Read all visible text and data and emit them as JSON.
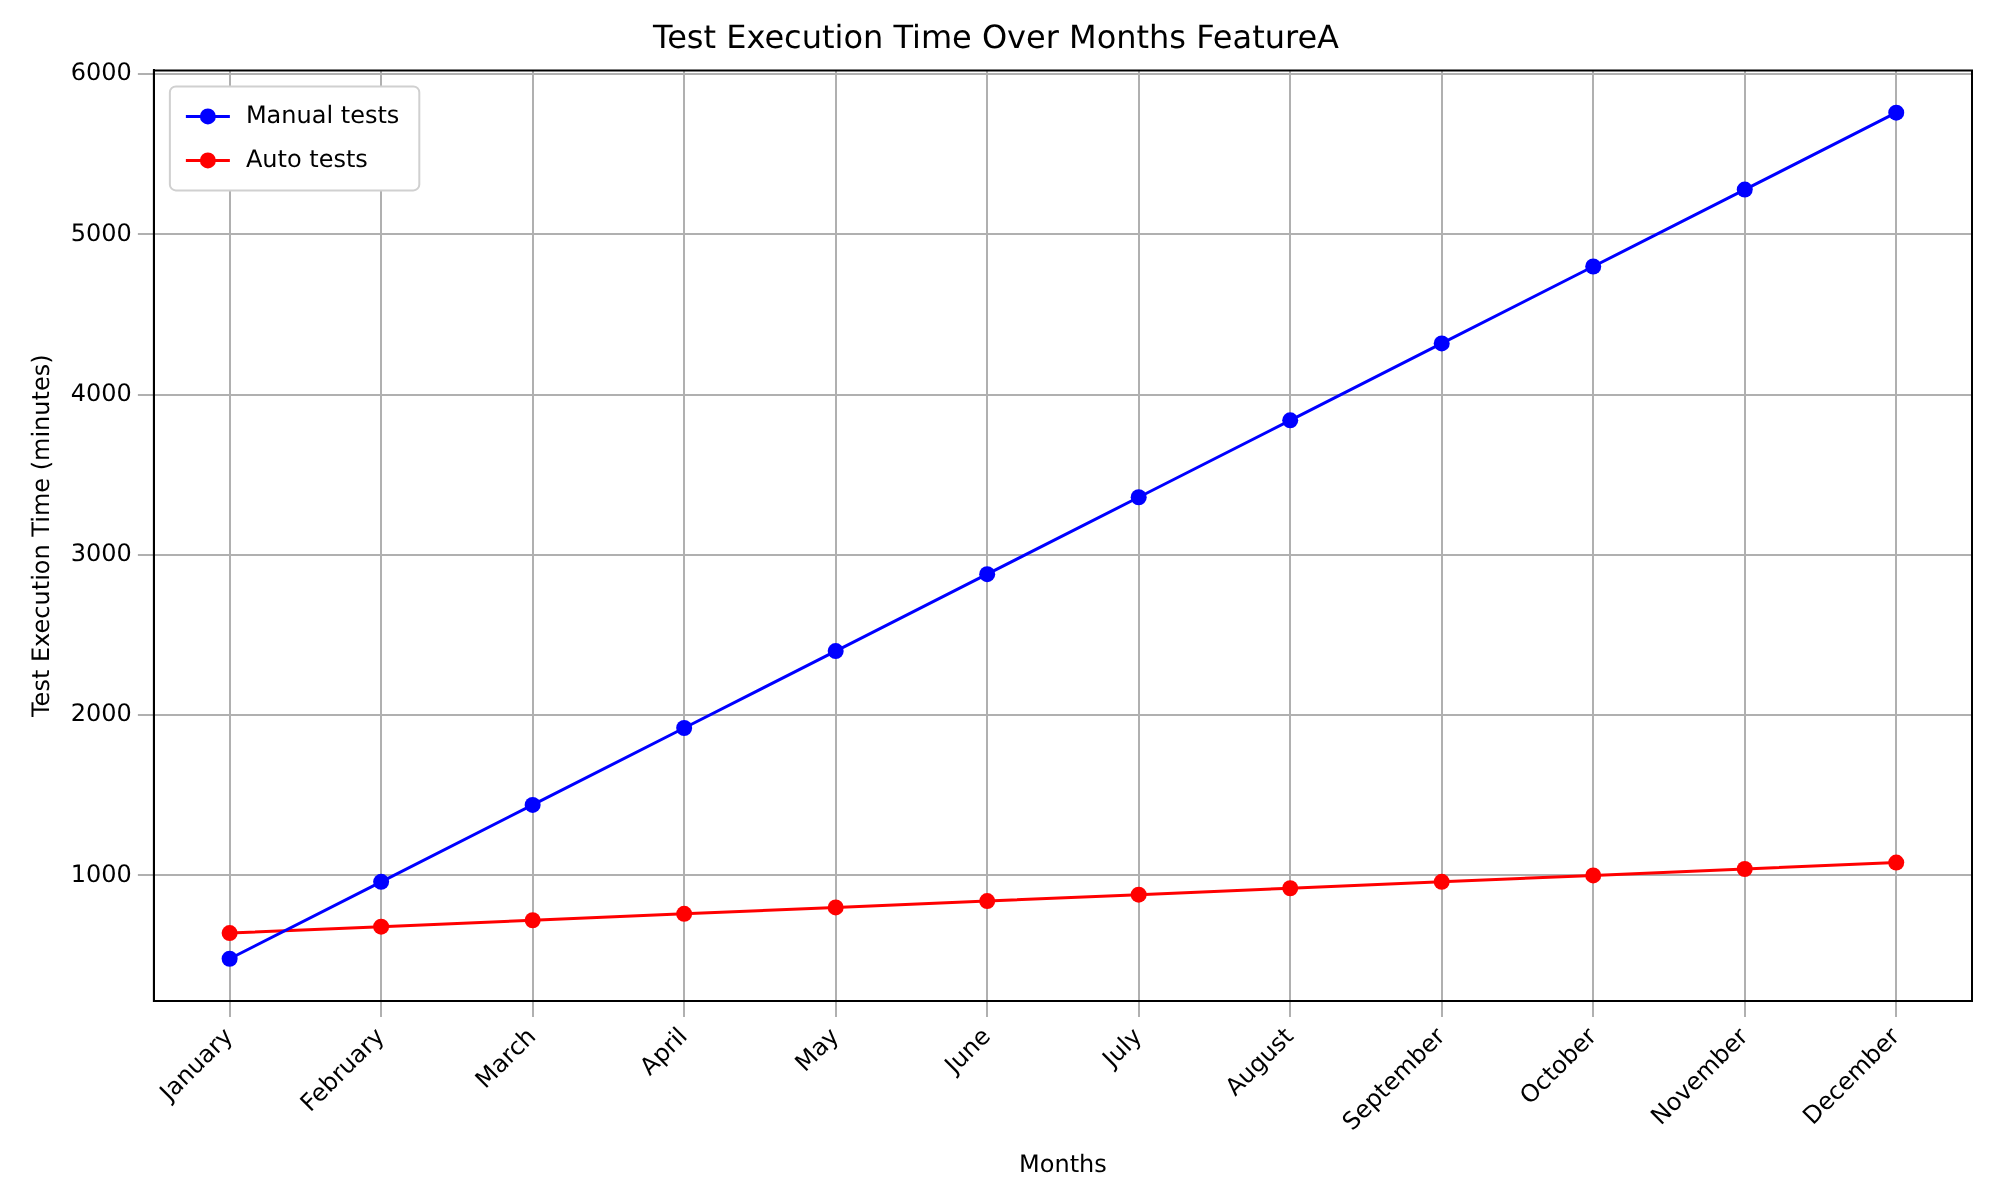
{
  "chart_data": {
    "type": "line",
    "title": "Test Execution Time Over Months FeatureA",
    "xlabel": "Months",
    "ylabel": "Test Execution Time (minutes)",
    "categories": [
      "January",
      "February",
      "March",
      "April",
      "May",
      "June",
      "July",
      "August",
      "September",
      "October",
      "November",
      "December"
    ],
    "series": [
      {
        "name": "Manual tests",
        "color": "#0000ff",
        "values": [
          480,
          960,
          1440,
          1920,
          2400,
          2880,
          3360,
          3840,
          4320,
          4800,
          5280,
          5760
        ]
      },
      {
        "name": "Auto tests",
        "color": "#ff0000",
        "values": [
          640,
          680,
          720,
          760,
          800,
          840,
          880,
          920,
          960,
          1000,
          1040,
          1080
        ]
      }
    ],
    "ylim": [
      216,
      6024
    ],
    "yticks": [
      1000,
      2000,
      3000,
      4000,
      5000,
      6000
    ],
    "grid": true,
    "legend": "top left",
    "marker": "circle",
    "line_style": "solid"
  }
}
